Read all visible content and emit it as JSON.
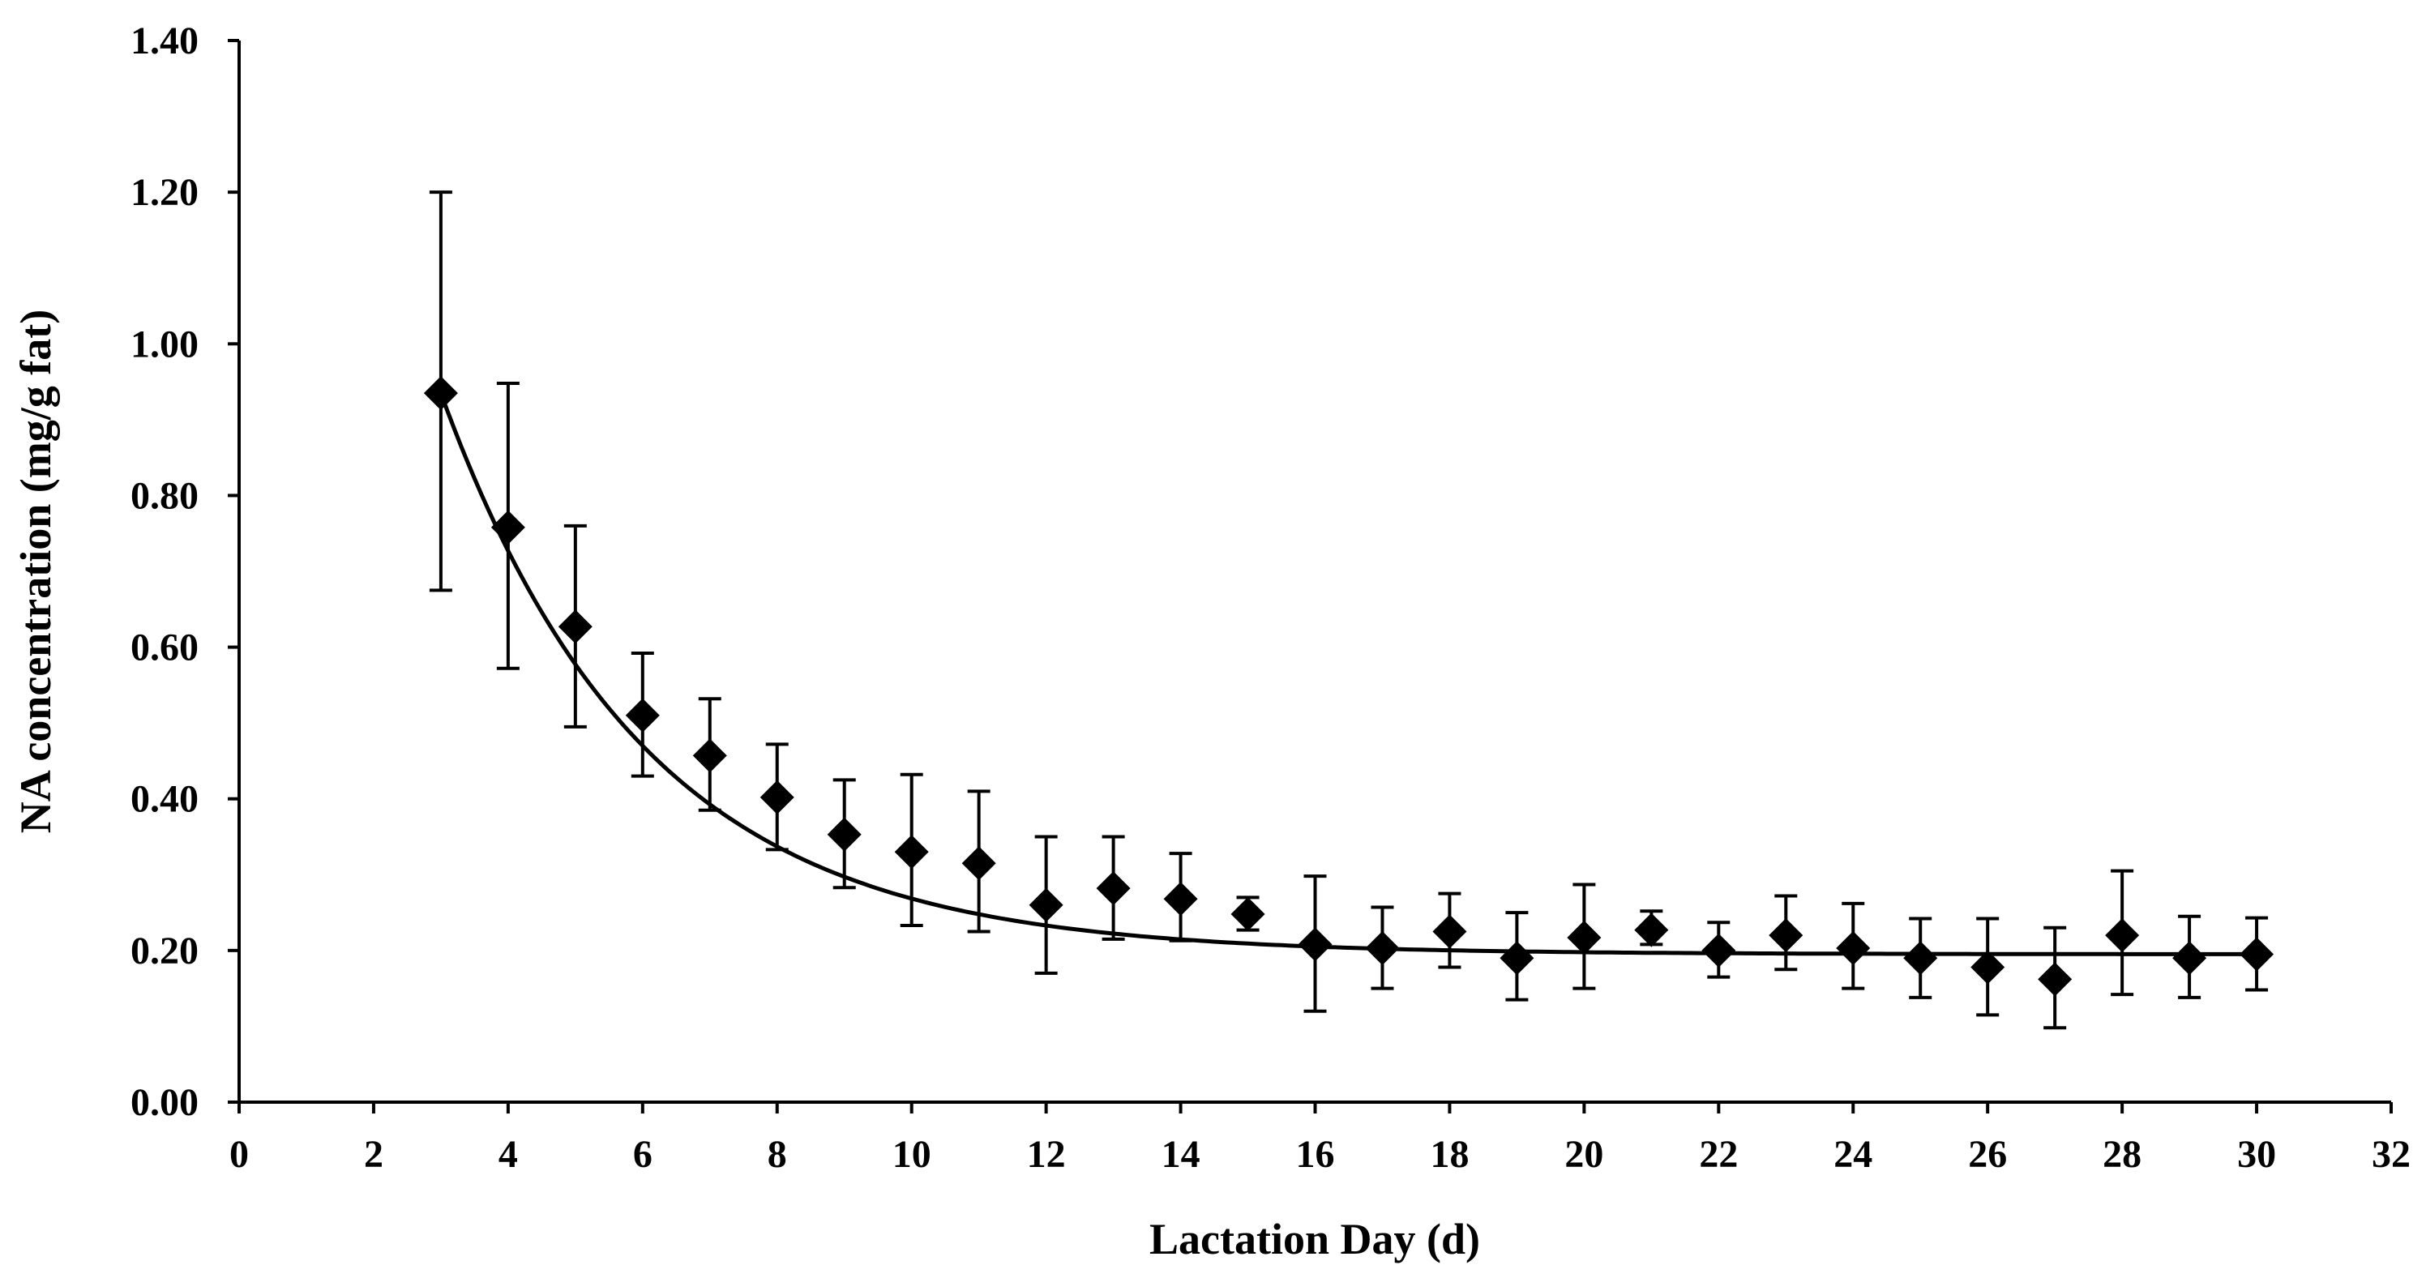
{
  "chart_data": {
    "type": "scatter",
    "title": "",
    "xlabel": "Lactation Day (d)",
    "ylabel": "NA concentration (mg/g fat)",
    "xlim": [
      0,
      32
    ],
    "ylim": [
      0,
      1.4
    ],
    "x_ticks": [
      "0",
      "2",
      "4",
      "6",
      "8",
      "10",
      "12",
      "14",
      "16",
      "18",
      "20",
      "22",
      "24",
      "26",
      "28",
      "30",
      "32"
    ],
    "y_ticks": [
      "0.00",
      "0.20",
      "0.40",
      "0.60",
      "0.80",
      "1.00",
      "1.20",
      "1.40"
    ],
    "series": [
      {
        "name": "NA concentration",
        "x": [
          3,
          4,
          5,
          6,
          7,
          8,
          9,
          10,
          11,
          12,
          13,
          14,
          15,
          16,
          17,
          18,
          19,
          20,
          21,
          22,
          23,
          24,
          25,
          26,
          27,
          28,
          29,
          30
        ],
        "y": [
          0.935,
          0.758,
          0.627,
          0.51,
          0.457,
          0.402,
          0.353,
          0.33,
          0.315,
          0.26,
          0.282,
          0.268,
          0.248,
          0.208,
          0.203,
          0.225,
          0.19,
          0.217,
          0.227,
          0.2,
          0.22,
          0.203,
          0.19,
          0.178,
          0.162,
          0.22,
          0.19,
          0.195
        ],
        "err_low": [
          0.675,
          0.572,
          0.495,
          0.43,
          0.385,
          0.333,
          0.283,
          0.233,
          0.225,
          0.17,
          0.215,
          0.213,
          0.227,
          0.12,
          0.15,
          0.178,
          0.135,
          0.15,
          0.208,
          0.165,
          0.175,
          0.15,
          0.138,
          0.115,
          0.098,
          0.142,
          0.138,
          0.148
        ],
        "err_high": [
          1.2,
          0.948,
          0.76,
          0.592,
          0.532,
          0.472,
          0.425,
          0.432,
          0.41,
          0.35,
          0.35,
          0.328,
          0.27,
          0.298,
          0.257,
          0.275,
          0.25,
          0.287,
          0.252,
          0.237,
          0.272,
          0.262,
          0.242,
          0.242,
          0.23,
          0.305,
          0.245,
          0.243
        ]
      }
    ],
    "trendline": {
      "type": "exponential_decay",
      "params": {
        "asymptote": 0.195,
        "a0": 0.74,
        "x0": 3,
        "k": 0.33
      },
      "x_range": [
        3,
        30
      ]
    }
  }
}
